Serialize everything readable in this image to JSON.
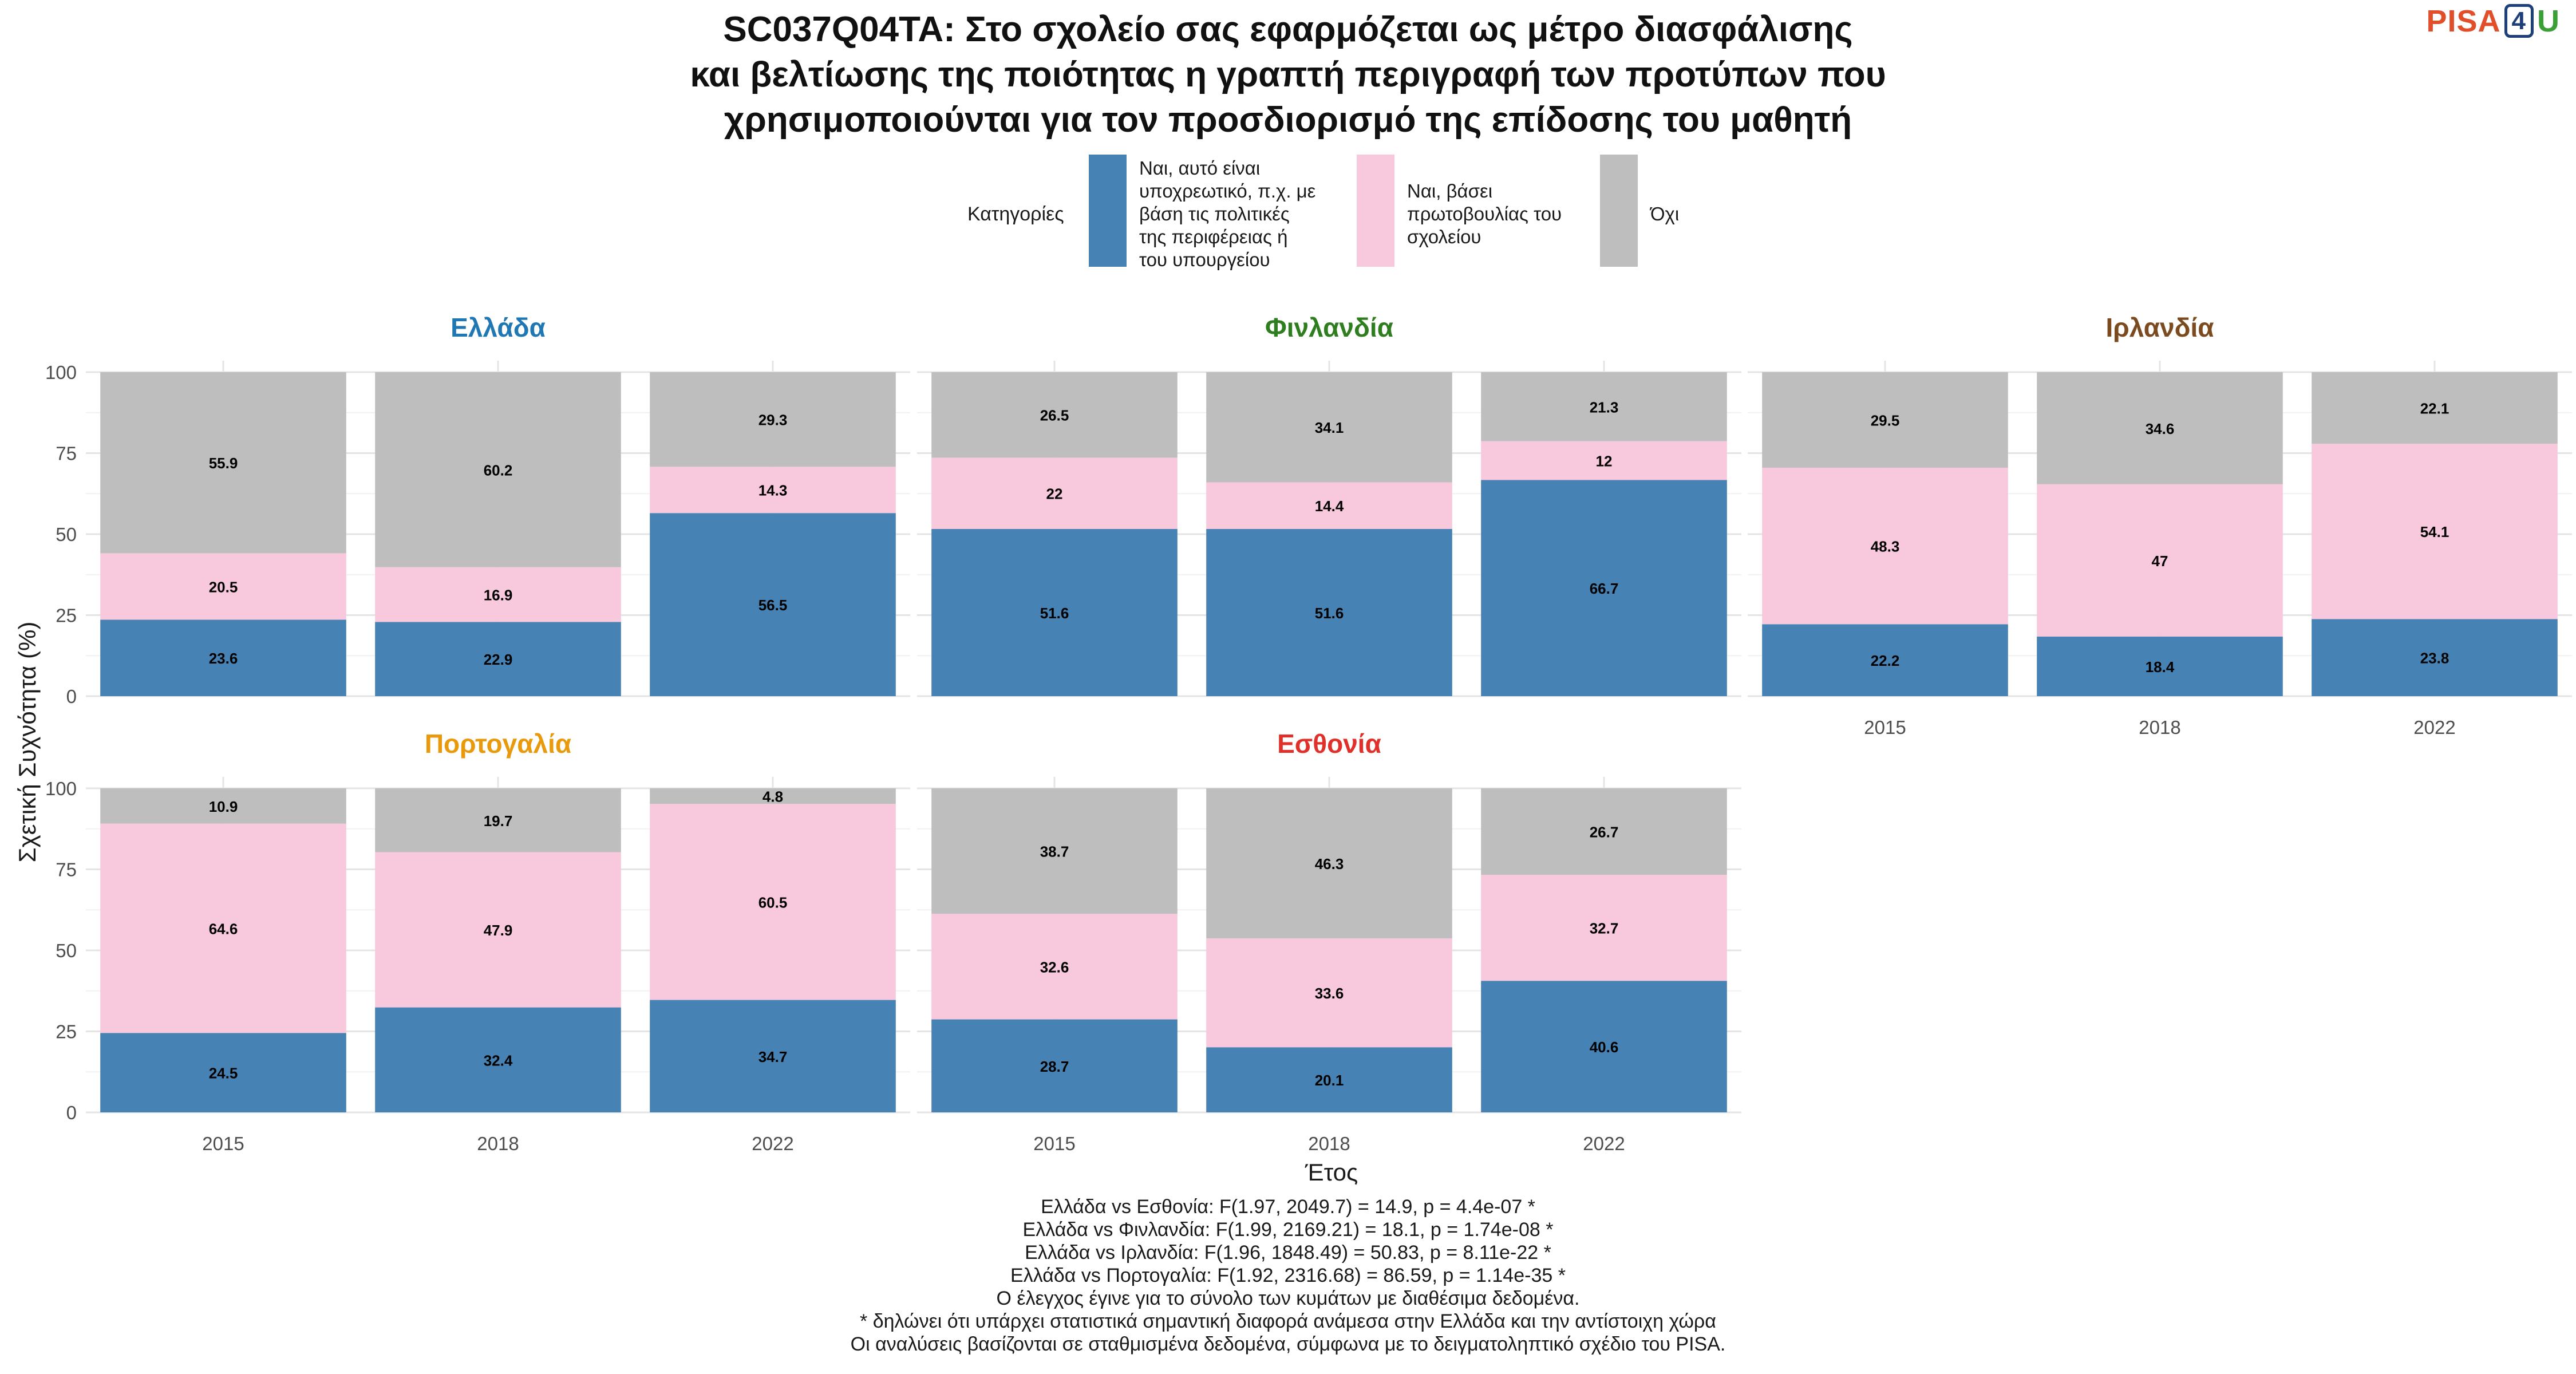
{
  "title": "SC037Q04TA: Στο σχολείο σας εφαρμόζεται ως μέτρο διασφάλισης\nκαι βελτίωσης της ποιότητας η γραπτή περιγραφή των προτύπων που\nχρησιμοποιούνται για τον προσδιορισμό της επίδοσης του μαθητή",
  "logo": {
    "pisa": "PISA",
    "four": "4",
    "u": "U"
  },
  "legend": {
    "title": "Κατηγορίες",
    "items": [
      {
        "label": "Ναι, αυτό είναι\nυποχρεωτικό, π.χ. με\nβάση τις πολιτικές\nτης περιφέρειας ή\nτου υπουργείου",
        "color": "#4682B4"
      },
      {
        "label": "Ναι, βάσει\nπρωτοβουλίας του\nσχολείου",
        "color": "#F8C8DC"
      },
      {
        "label": "Όχι",
        "color": "#BEBEBE"
      }
    ]
  },
  "chart_data": {
    "type": "bar",
    "stacked": true,
    "xlabel": "Έτος",
    "ylabel": "Σχετική Συχνότητα (%)",
    "ylim": [
      0,
      100
    ],
    "yticks": [
      0,
      25,
      50,
      75,
      100
    ],
    "categories": [
      "2015",
      "2018",
      "2022"
    ],
    "series_names": [
      "Ναι, αυτό είναι υποχρεωτικό, π.χ. με βάση τις πολιτικές της περιφέρειας ή του υπουργείου",
      "Ναι, βάσει πρωτοβουλίας του σχολείου",
      "Όχι"
    ],
    "colors": [
      "#4682B4",
      "#F8C8DC",
      "#BEBEBE"
    ],
    "panels": [
      {
        "name": "Ελλάδα",
        "title_color": "#1F77B4",
        "values": [
          [
            23.6,
            20.5,
            55.9
          ],
          [
            22.9,
            16.9,
            60.2
          ],
          [
            56.5,
            14.3,
            29.3
          ]
        ]
      },
      {
        "name": "Φινλανδία",
        "title_color": "#2E7D1E",
        "values": [
          [
            51.6,
            22,
            26.5
          ],
          [
            51.6,
            14.4,
            34.1
          ],
          [
            66.7,
            12,
            21.3
          ]
        ]
      },
      {
        "name": "Ιρλανδία",
        "title_color": "#7B4A1E",
        "values": [
          [
            22.2,
            48.3,
            29.5
          ],
          [
            18.4,
            47,
            34.6
          ],
          [
            23.8,
            54.1,
            22.1
          ]
        ]
      },
      {
        "name": "Πορτογαλία",
        "title_color": "#E89A0C",
        "values": [
          [
            24.5,
            64.6,
            10.9
          ],
          [
            32.4,
            47.9,
            19.7
          ],
          [
            34.7,
            60.5,
            4.8
          ]
        ]
      },
      {
        "name": "Εσθονία",
        "title_color": "#E0302A",
        "values": [
          [
            28.7,
            32.6,
            38.7
          ],
          [
            20.1,
            33.6,
            46.3
          ],
          [
            40.6,
            32.7,
            26.7
          ]
        ]
      }
    ]
  },
  "footer": [
    "Ελλάδα vs Εσθονία: F(1.97, 2049.7) = 14.9, p = 4.4e-07 *",
    "Ελλάδα vs Φινλανδία: F(1.99, 2169.21) = 18.1, p = 1.74e-08 *",
    "Ελλάδα vs Ιρλανδία: F(1.96, 1848.49) = 50.83, p = 8.11e-22 *",
    "Ελλάδα vs Πορτογαλία: F(1.92, 2316.68) = 86.59, p = 1.14e-35 *",
    "Ο έλεγχος έγινε για το σύνολο των κυμάτων με διαθέσιμα δεδομένα.",
    "* δηλώνει ότι υπάρχει στατιστικά σημαντική διαφορά ανάμεσα στην Ελλάδα και την αντίστοιχη χώρα",
    "Οι αναλύσεις βασίζονται σε σταθμισμένα δεδομένα, σύμφωνα με το δειγματοληπτικό σχέδιο του PISA."
  ]
}
